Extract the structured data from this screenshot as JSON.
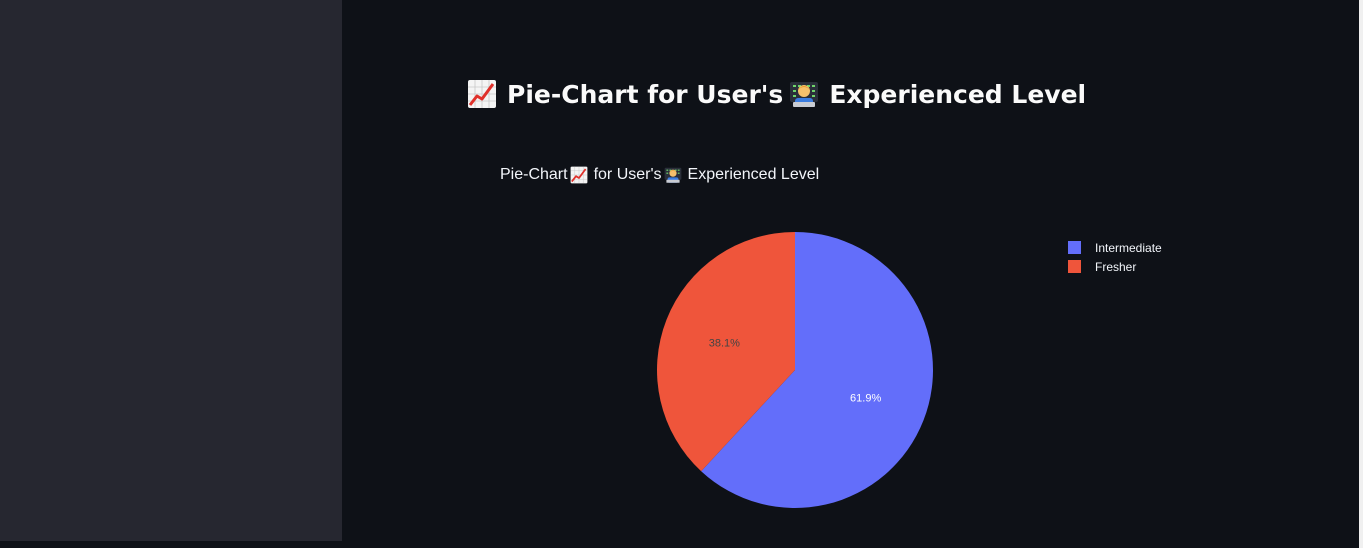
{
  "page": {
    "title_part1": "Pie-Chart for User's",
    "title_part2": "Experienced Level",
    "title_icon1": "chart-increasing-icon",
    "title_icon2": "technologist-icon"
  },
  "chart_data": {
    "type": "pie",
    "title_part1": "Pie-Chart",
    "title_part2": "for User's",
    "title_part3": "Experienced Level",
    "labels": [
      "Intermediate",
      "Fresher"
    ],
    "values": [
      61.9,
      38.1
    ],
    "percent_labels": [
      "61.9%",
      "38.1%"
    ],
    "colors": [
      "#636efa",
      "#ef553b"
    ],
    "legend_position": "top-right"
  },
  "theme": {
    "background": "#0e1117",
    "sidebar": "#262730",
    "text": "#fafafa"
  }
}
